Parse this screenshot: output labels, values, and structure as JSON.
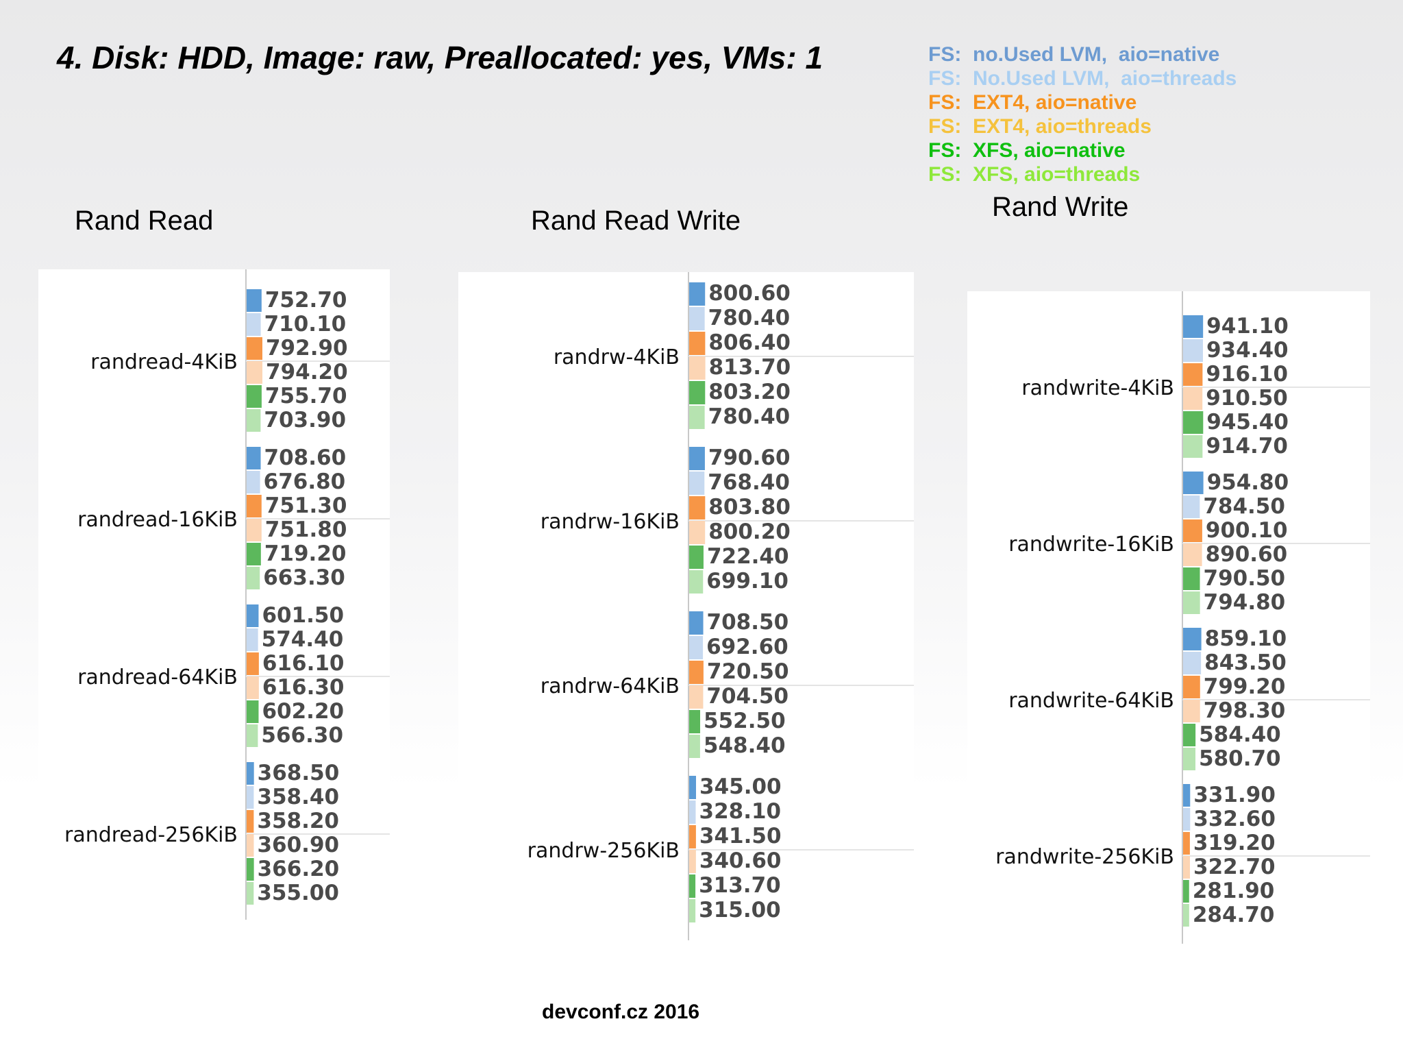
{
  "slide_title": "4. Disk: HDD, Image: raw, Preallocated: yes, VMs: 1",
  "footer": "devconf.cz 2016",
  "legend": [
    {
      "label": "FS:  no.Used LVM,  aio=native",
      "color": "#6d9bd1"
    },
    {
      "label": "FS:  No.Used LVM,  aio=threads",
      "color": "#a9cff2"
    },
    {
      "label": "FS:  EXT4, aio=native",
      "color": "#f7931e"
    },
    {
      "label": "FS:  EXT4, aio=threads",
      "color": "#f5c23d"
    },
    {
      "label": "FS:  XFS, aio=native",
      "color": "#0fbf0f"
    },
    {
      "label": "FS:  XFS, aio=threads",
      "color": "#8ee83a"
    }
  ],
  "bar_colors": [
    "#5b9bd5",
    "#c6d9f0",
    "#f79646",
    "#fcd5b4",
    "#5cb85c",
    "#b6e3b0"
  ],
  "chart_data": [
    {
      "type": "bar",
      "title": "Rand Read",
      "categories": [
        "randread-4KiB",
        "randread-16KiB",
        "randread-64KiB",
        "randread-256KiB"
      ],
      "series": [
        {
          "name": "FS:  no.Used LVM,  aio=native",
          "values": [
            752.7,
            708.6,
            601.5,
            368.5
          ]
        },
        {
          "name": "FS:  No.Used LVM,  aio=threads",
          "values": [
            710.1,
            676.8,
            574.4,
            358.4
          ]
        },
        {
          "name": "FS:  EXT4, aio=native",
          "values": [
            792.9,
            751.3,
            616.1,
            358.2
          ]
        },
        {
          "name": "FS:  EXT4, aio=threads",
          "values": [
            794.2,
            751.8,
            616.3,
            360.9
          ]
        },
        {
          "name": "FS:  XFS, aio=native",
          "values": [
            755.7,
            719.2,
            602.2,
            366.2
          ]
        },
        {
          "name": "FS:  XFS, aio=threads",
          "values": [
            703.9,
            663.3,
            566.3,
            355.0
          ]
        }
      ],
      "labels": [
        [
          "752.70",
          "710.10",
          "792.90",
          "794.20",
          "755.70",
          "703.90"
        ],
        [
          "708.60",
          "676.80",
          "751.30",
          "751.80",
          "719.20",
          "663.30"
        ],
        [
          "601.50",
          "574.40",
          "616.10",
          "616.30",
          "602.20",
          "566.30"
        ],
        [
          "368.50",
          "358.40",
          "358.20",
          "360.90",
          "366.20",
          "355.00"
        ]
      ]
    },
    {
      "type": "bar",
      "title": "Rand Read Write",
      "categories": [
        "randrw-4KiB",
        "randrw-16KiB",
        "randrw-64KiB",
        "randrw-256KiB"
      ],
      "series": [
        {
          "name": "FS:  no.Used LVM,  aio=native",
          "values": [
            800.6,
            790.6,
            708.5,
            345.0
          ]
        },
        {
          "name": "FS:  No.Used LVM,  aio=threads",
          "values": [
            780.4,
            768.4,
            692.6,
            328.1
          ]
        },
        {
          "name": "FS:  EXT4, aio=native",
          "values": [
            806.4,
            803.8,
            720.5,
            341.5
          ]
        },
        {
          "name": "FS:  EXT4, aio=threads",
          "values": [
            813.7,
            800.2,
            704.5,
            340.6
          ]
        },
        {
          "name": "FS:  XFS, aio=native",
          "values": [
            803.2,
            722.4,
            552.5,
            313.7
          ]
        },
        {
          "name": "FS:  XFS, aio=threads",
          "values": [
            780.4,
            699.1,
            548.4,
            315.0
          ]
        }
      ],
      "labels": [
        [
          "800.60",
          "780.40",
          "806.40",
          "813.70",
          "803.20",
          "780.40"
        ],
        [
          "790.60",
          "768.40",
          "803.80",
          "800.20",
          "722.40",
          "699.10"
        ],
        [
          "708.50",
          "692.60",
          "720.50",
          "704.50",
          "552.50",
          "548.40"
        ],
        [
          "345.00",
          "328.10",
          "341.50",
          "340.60",
          "313.70",
          "315.00"
        ]
      ]
    },
    {
      "type": "bar",
      "title": "Rand Write",
      "categories": [
        "randwrite-4KiB",
        "randwrite-16KiB",
        "randwrite-64KiB",
        "randwrite-256KiB"
      ],
      "series": [
        {
          "name": "FS:  no.Used LVM,  aio=native",
          "values": [
            941.1,
            954.8,
            859.1,
            331.9
          ]
        },
        {
          "name": "FS:  No.Used LVM,  aio=threads",
          "values": [
            934.4,
            784.5,
            843.5,
            332.6
          ]
        },
        {
          "name": "FS:  EXT4, aio=native",
          "values": [
            916.1,
            900.1,
            799.2,
            319.2
          ]
        },
        {
          "name": "FS:  EXT4, aio=threads",
          "values": [
            910.5,
            890.6,
            798.3,
            322.7
          ]
        },
        {
          "name": "FS:  XFS, aio=native",
          "values": [
            945.4,
            790.5,
            584.4,
            281.9
          ]
        },
        {
          "name": "FS:  XFS, aio=threads",
          "values": [
            914.7,
            794.8,
            580.7,
            284.7
          ]
        }
      ],
      "labels": [
        [
          "941.10",
          "934.40",
          "916.10",
          "910.50",
          "945.40",
          "914.70"
        ],
        [
          "954.80",
          "784.50",
          "900.10",
          "890.60",
          "790.50",
          "794.80"
        ],
        [
          "859.10",
          "843.50",
          "799.20",
          "798.30",
          "584.40",
          "580.70"
        ],
        [
          "331.90",
          "332.60",
          "319.20",
          "322.70",
          "281.90",
          "284.70"
        ]
      ]
    }
  ]
}
